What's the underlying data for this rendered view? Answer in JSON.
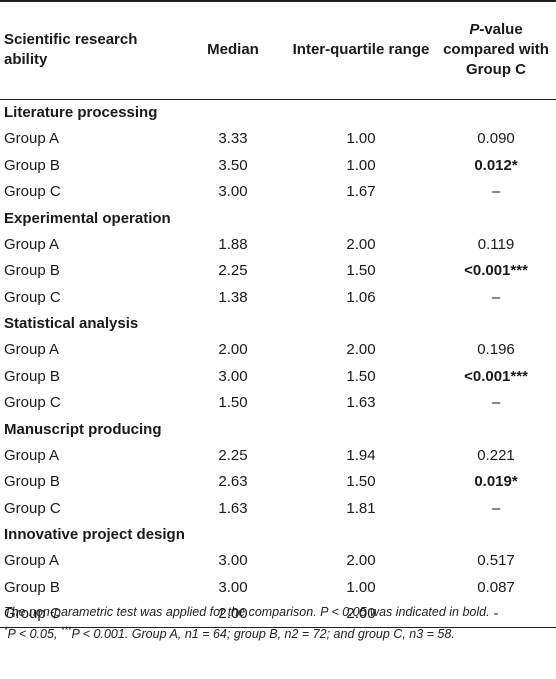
{
  "headers": {
    "col0": "Scientific research ability",
    "col1": "Median",
    "col2": "Inter-quartile range",
    "col3_p": "P",
    "col3_rest": "-value compared with Group C"
  },
  "sections": [
    {
      "title": "Literature processing",
      "rows": [
        {
          "group": "Group A",
          "median": "3.33",
          "iqr": "1.00",
          "p": "0.090",
          "bold": false
        },
        {
          "group": "Group B",
          "median": "3.50",
          "iqr": "1.00",
          "p": "0.012*",
          "bold": true
        },
        {
          "group": "Group C",
          "median": "3.00",
          "iqr": "1.67",
          "p": "–",
          "bold": false
        }
      ]
    },
    {
      "title": "Experimental operation",
      "rows": [
        {
          "group": "Group A",
          "median": "1.88",
          "iqr": "2.00",
          "p": "0.119",
          "bold": false
        },
        {
          "group": "Group B",
          "median": "2.25",
          "iqr": "1.50",
          "p": "<0.001***",
          "bold": true
        },
        {
          "group": "Group C",
          "median": "1.38",
          "iqr": "1.06",
          "p": "–",
          "bold": false
        }
      ]
    },
    {
      "title": "Statistical analysis",
      "rows": [
        {
          "group": "Group A",
          "median": "2.00",
          "iqr": "2.00",
          "p": "0.196",
          "bold": false
        },
        {
          "group": "Group B",
          "median": "3.00",
          "iqr": "1.50",
          "p": "<0.001***",
          "bold": true
        },
        {
          "group": "Group C",
          "median": "1.50",
          "iqr": "1.63",
          "p": "–",
          "bold": false
        }
      ]
    },
    {
      "title": "Manuscript producing",
      "rows": [
        {
          "group": "Group A",
          "median": "2.25",
          "iqr": "1.94",
          "p": "0.221",
          "bold": false
        },
        {
          "group": "Group B",
          "median": "2.63",
          "iqr": "1.50",
          "p": "0.019*",
          "bold": true
        },
        {
          "group": "Group C",
          "median": "1.63",
          "iqr": "1.81",
          "p": "–",
          "bold": false
        }
      ]
    },
    {
      "title": "Innovative project design",
      "rows": [
        {
          "group": "Group A",
          "median": "3.00",
          "iqr": "2.00",
          "p": "0.517",
          "bold": false
        },
        {
          "group": "Group B",
          "median": "3.00",
          "iqr": "1.00",
          "p": "0.087",
          "bold": false
        },
        {
          "group": "Group C",
          "median": "2.00",
          "iqr": "2.00",
          "p": "-",
          "bold": false
        }
      ]
    }
  ],
  "footnote_line1": "The non-parametric test was applied for the comparison. P < 0.05 was indicated in bold.",
  "footnote_line2_sup1": "*",
  "footnote_line2_a": "P < 0.05, ",
  "footnote_line2_sup2": "***",
  "footnote_line2_b": "P < 0.001. Group A, n1 = 64; group B, n2 = 72; and group C, n3 = 58."
}
